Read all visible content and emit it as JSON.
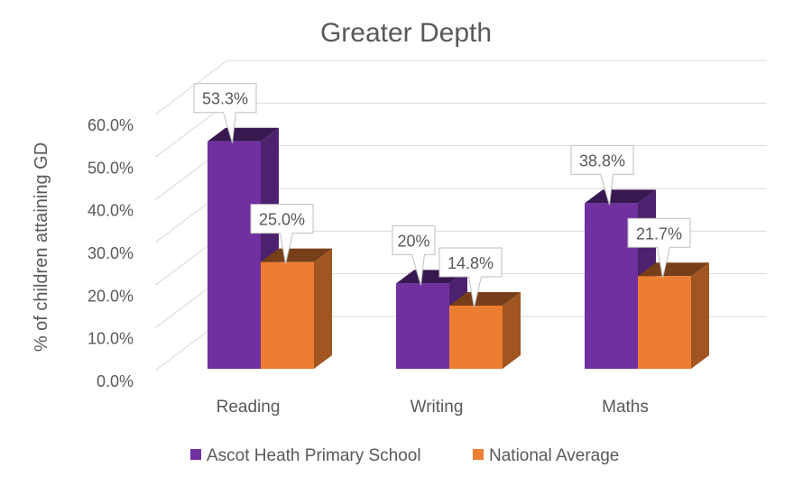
{
  "chart_data": {
    "type": "bar",
    "title": "Greater Depth",
    "ylabel": "% of children attaining GD",
    "xlabel": "",
    "categories": [
      "Reading",
      "Writing",
      "Maths"
    ],
    "ylim": [
      0,
      60
    ],
    "yticks": [
      0,
      10,
      20,
      30,
      40,
      50,
      60
    ],
    "ytick_labels": [
      "0.0%",
      "10.0%",
      "20.0%",
      "30.0%",
      "40.0%",
      "50.0%",
      "60.0%"
    ],
    "grid": true,
    "three_d": true,
    "legend_position": "bottom",
    "series": [
      {
        "name": "Ascot Heath Primary School",
        "color": "#7030A0",
        "values": [
          53.3,
          20,
          38.8
        ],
        "data_labels": [
          "53.3%",
          "20%",
          "38.8%"
        ]
      },
      {
        "name": "National Average",
        "color": "#ED7D31",
        "values": [
          25.0,
          14.8,
          21.7
        ],
        "data_labels": [
          "25.0%",
          "14.8%",
          "21.7%"
        ]
      }
    ]
  }
}
